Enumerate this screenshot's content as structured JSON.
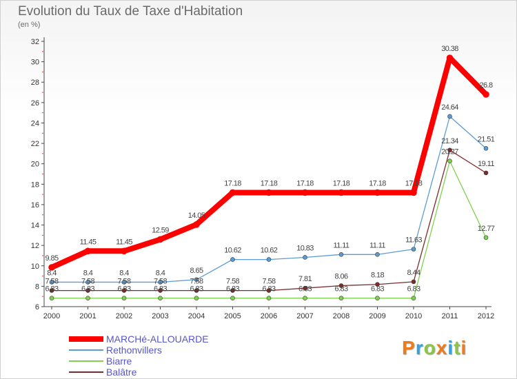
{
  "chart_data": {
    "type": "line",
    "title": "Evolution du Taux de Taxe d'Habitation",
    "subtitle": "(en %)",
    "categories": [
      "2000",
      "2001",
      "2002",
      "2003",
      "2004",
      "2005",
      "2006",
      "2007",
      "2008",
      "2009",
      "2010",
      "2011",
      "2012"
    ],
    "ylim": [
      6,
      32
    ],
    "yticks": [
      6,
      8,
      10,
      12,
      14,
      16,
      18,
      20,
      22,
      24,
      26,
      28,
      30,
      32
    ],
    "grid": false,
    "legend": "bottom-left",
    "series": [
      {
        "name": "MARCHé-ALLOUARDE",
        "color": "#ff0000",
        "values": [
          9.85,
          11.45,
          11.45,
          12.59,
          14.05,
          17.18,
          17.18,
          17.18,
          17.18,
          17.18,
          17.18,
          30.38,
          26.8
        ],
        "labels": [
          "9.85",
          "11.45",
          "11.45",
          "12.59",
          "14.05",
          "17.18",
          "17.18",
          "17.18",
          "17.18",
          "17.18",
          "17.18",
          "30.38",
          "26.8"
        ]
      },
      {
        "name": "Rethonvillers",
        "color": "#5b9bd5",
        "values": [
          8.4,
          8.4,
          8.4,
          8.4,
          8.65,
          10.62,
          10.62,
          10.83,
          11.11,
          11.11,
          11.63,
          24.64,
          21.51
        ],
        "labels": [
          "8.4",
          "8.4",
          "8.4",
          "8.4",
          "8.65",
          "10.62",
          "10.62",
          "10.83",
          "11.11",
          "11.11",
          "11.63",
          "24.64",
          "21.51"
        ]
      },
      {
        "name": "Biarre",
        "color": "#80d050",
        "values": [
          6.83,
          6.83,
          6.83,
          6.83,
          6.83,
          6.83,
          6.83,
          6.83,
          6.83,
          6.83,
          6.83,
          20.27,
          12.77
        ],
        "labels": [
          "6.83",
          "6.83",
          "6.83",
          "6.83",
          "6.83",
          "6.83",
          "6.83",
          "6.83",
          "6.83",
          "6.83",
          "6.83",
          "20.27",
          "12.77"
        ]
      },
      {
        "name": "Balâtre",
        "color": "#7b2b2b",
        "values": [
          7.58,
          7.58,
          7.58,
          7.58,
          7.58,
          7.58,
          7.58,
          7.81,
          8.06,
          8.18,
          8.44,
          21.34,
          19.11
        ],
        "labels": [
          "7.58",
          "7.58",
          "7.58",
          "7.58",
          "7.58",
          "7.58",
          "7.58",
          "7.81",
          "8.06",
          "8.18",
          "8.44",
          "21.34",
          "19.11"
        ]
      }
    ]
  },
  "logo": {
    "text": "Proxiti",
    "letters": [
      "P",
      "r",
      "o",
      "x",
      "i",
      "t",
      "i"
    ],
    "colors": [
      "#f07a1a",
      "#3ba0d8",
      "#8cc63f",
      "#f07a1a",
      "#3ba0d8",
      "#8cc63f",
      "#f07a1a"
    ]
  }
}
